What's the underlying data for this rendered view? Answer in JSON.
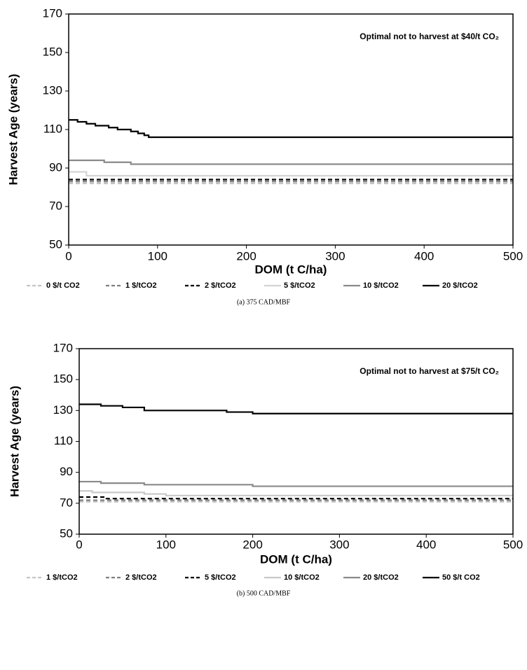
{
  "chart_data": [
    {
      "type": "line",
      "step": true,
      "annotation": "Optimal not to harvest at $40/t CO₂",
      "x_label": "DOM (t C/ha)",
      "y_label": "Harvest  Age (years)",
      "caption": "(a) 375 CAD/MBF",
      "xlim": [
        0,
        500
      ],
      "xticks": [
        0,
        100,
        200,
        300,
        400,
        500
      ],
      "ylim": [
        50,
        170
      ],
      "yticks": [
        50,
        70,
        90,
        110,
        130,
        150,
        170
      ],
      "series": [
        {
          "name": "0 $/t CO2",
          "color": "#c4c4c4",
          "dash": true,
          "x": [
            0,
            500
          ],
          "values": [
            82,
            82
          ]
        },
        {
          "name": "1 $/tCO2",
          "color": "#808080",
          "dash": true,
          "x": [
            0,
            500
          ],
          "values": [
            83,
            83
          ]
        },
        {
          "name": "2 $/tCO2",
          "color": "#000000",
          "dash": true,
          "x": [
            0,
            500
          ],
          "values": [
            84,
            84
          ]
        },
        {
          "name": "5 $/tCO2",
          "color": "#d4d4d4",
          "dash": false,
          "x": [
            0,
            20,
            500
          ],
          "values": [
            88,
            86,
            86
          ]
        },
        {
          "name": "10 $/tCO2",
          "color": "#8a8a8a",
          "dash": false,
          "x": [
            0,
            40,
            70,
            500
          ],
          "values": [
            94,
            93,
            92,
            92
          ]
        },
        {
          "name": "20 $/tCO2",
          "color": "#000000",
          "dash": false,
          "x": [
            0,
            10,
            20,
            30,
            45,
            55,
            70,
            78,
            85,
            90,
            500
          ],
          "values": [
            115,
            114,
            113,
            112,
            111,
            110,
            109,
            108,
            107,
            106,
            106
          ]
        }
      ]
    },
    {
      "type": "line",
      "step": true,
      "annotation": "Optimal not to harvest at $75/t CO₂",
      "x_label": "DOM (t C/ha)",
      "y_label": "Harvest  Age (years)",
      "caption": "(b) 500 CAD/MBF",
      "xlim": [
        0,
        500
      ],
      "xticks": [
        0,
        100,
        200,
        300,
        400,
        500
      ],
      "ylim": [
        50,
        170
      ],
      "yticks": [
        50,
        70,
        90,
        110,
        130,
        150,
        170
      ],
      "series": [
        {
          "name": "1 $/tCO2",
          "color": "#c4c4c4",
          "dash": true,
          "x": [
            0,
            500
          ],
          "values": [
            71,
            71
          ]
        },
        {
          "name": "2 $/tCO2",
          "color": "#808080",
          "dash": true,
          "x": [
            0,
            500
          ],
          "values": [
            72,
            72
          ]
        },
        {
          "name": "5 $/tCO2",
          "color": "#000000",
          "dash": true,
          "x": [
            0,
            30,
            500
          ],
          "values": [
            74,
            73,
            73
          ]
        },
        {
          "name": "10 $/tCO2",
          "color": "#c8c8c8",
          "dash": false,
          "x": [
            0,
            15,
            75,
            100,
            500
          ],
          "values": [
            78,
            77,
            76,
            75,
            75
          ]
        },
        {
          "name": "20 $/tCO2",
          "color": "#8a8a8a",
          "dash": false,
          "x": [
            0,
            25,
            75,
            200,
            500
          ],
          "values": [
            84,
            83,
            82,
            81,
            81
          ]
        },
        {
          "name": "50 $/t CO2",
          "color": "#000000",
          "dash": false,
          "x": [
            0,
            25,
            50,
            75,
            170,
            200,
            500
          ],
          "values": [
            134,
            133,
            132,
            130,
            129,
            128,
            128
          ]
        }
      ]
    }
  ]
}
